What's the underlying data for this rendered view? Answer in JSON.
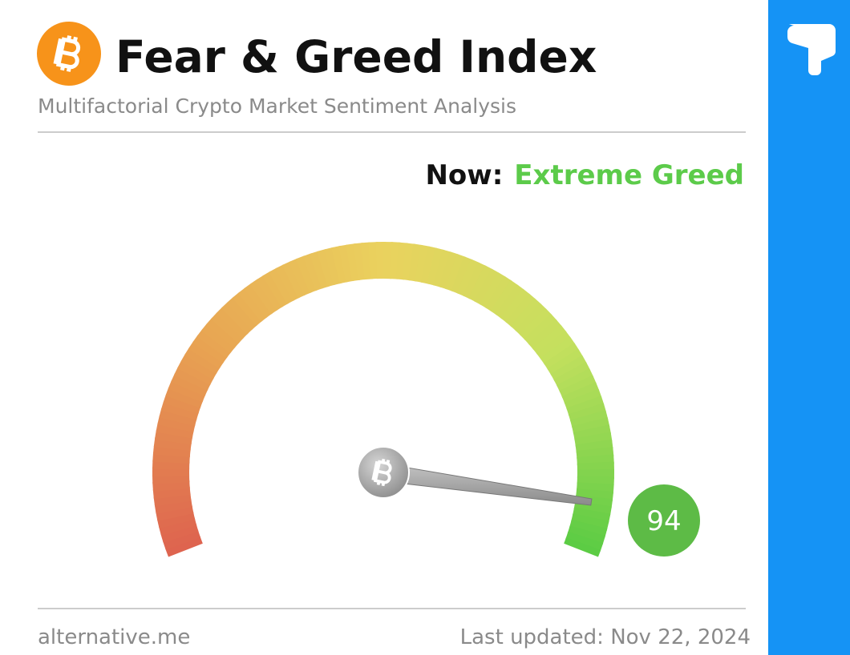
{
  "chart_data": {
    "type": "gauge",
    "title": "Fear & Greed Index",
    "subtitle": "Multifactorial Crypto Market Sentiment Analysis",
    "now_label": "Now:",
    "status": "Extreme Greed",
    "status_color": "#5ccb4a",
    "value": 94,
    "range": [
      0,
      100
    ],
    "badge_color": "#5dbb46",
    "colors": [
      "#de644f",
      "#e8a352",
      "#ead25e",
      "#c4e05e",
      "#5ccc44"
    ],
    "source": "alternative.me",
    "updated": "Last updated: Nov 22, 2024"
  }
}
